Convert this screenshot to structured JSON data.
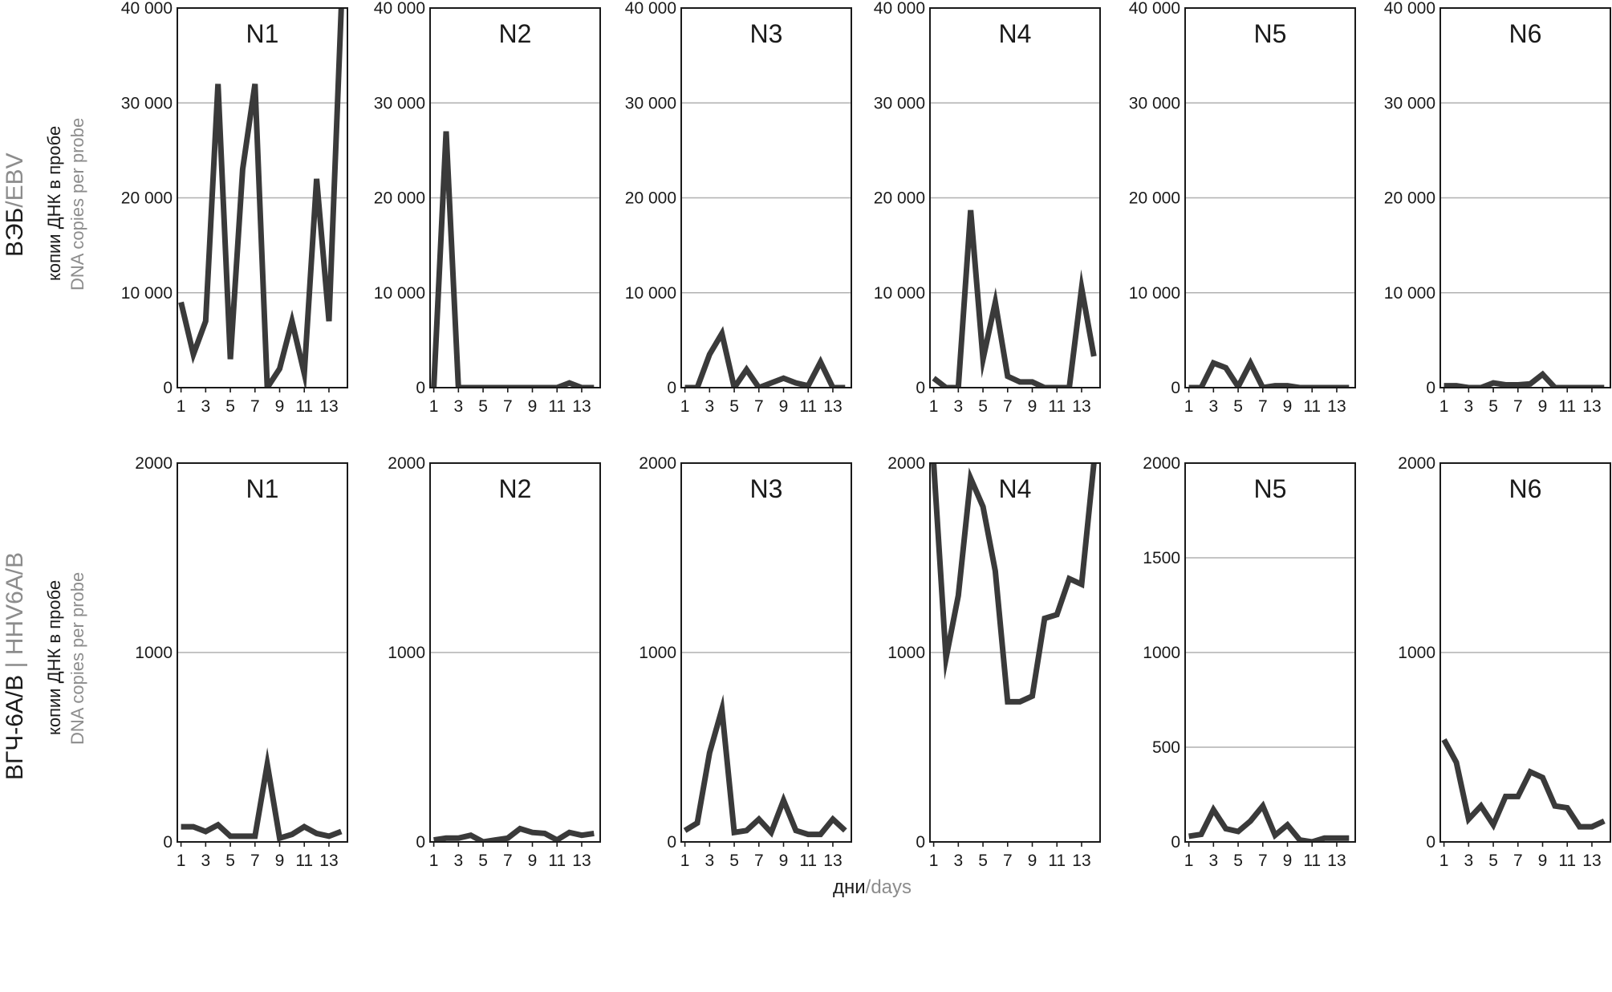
{
  "row_labels": [
    {
      "ru": "ВЭБ",
      "sep": "/",
      "en": "EBV",
      "ylabel_ru": "копии ДНК в пробе",
      "ylabel_en": "DNA copies per probe"
    },
    {
      "ru": "ВГЧ-6А/В",
      "sep": " | ",
      "en": "HHV6A/B",
      "ylabel_ru": "копии ДНК в пробе",
      "ylabel_en": "DNA copies per probe"
    }
  ],
  "x_axis_label": {
    "ru": "дни",
    "sep": "/",
    "en": "days"
  },
  "colors": {
    "line": "#3a3a3a",
    "grid": "#b0b0b0",
    "frame": "#1a1a1a",
    "secondary_text": "#8c8c8c"
  },
  "chart_data": [
    {
      "type": "line",
      "panel_row": 1,
      "title": "N1",
      "xlabel": "",
      "ylabel": "",
      "ylim": [
        0,
        40000
      ],
      "yticks": [
        0,
        10000,
        20000,
        30000,
        40000
      ],
      "ytick_labels": [
        "0",
        "10 000",
        "20 000",
        "30 000",
        "40 000"
      ],
      "xlim": [
        0.7,
        14.5
      ],
      "xticks": [
        1,
        3,
        5,
        7,
        9,
        11,
        13
      ],
      "x": [
        1,
        2,
        3,
        4,
        5,
        6,
        7,
        8,
        9,
        10,
        11,
        12,
        13,
        14
      ],
      "values": [
        9000,
        3500,
        7000,
        32000,
        3000,
        23000,
        32000,
        0,
        2000,
        7000,
        1500,
        22000,
        7000,
        40000
      ]
    },
    {
      "type": "line",
      "panel_row": 1,
      "title": "N2",
      "xlabel": "",
      "ylabel": "",
      "ylim": [
        0,
        40000
      ],
      "yticks": [
        0,
        10000,
        20000,
        30000,
        40000
      ],
      "ytick_labels": [
        "0",
        "10 000",
        "20 000",
        "30 000",
        "40 000"
      ],
      "xlim": [
        0.7,
        14.5
      ],
      "xticks": [
        1,
        3,
        5,
        7,
        9,
        11,
        13
      ],
      "x": [
        1,
        2,
        3,
        4,
        5,
        6,
        7,
        8,
        9,
        10,
        11,
        12,
        13,
        14
      ],
      "values": [
        0,
        27000,
        0,
        0,
        0,
        0,
        0,
        0,
        0,
        0,
        0,
        500,
        0,
        0
      ]
    },
    {
      "type": "line",
      "panel_row": 1,
      "title": "N3",
      "xlabel": "",
      "ylabel": "",
      "ylim": [
        0,
        40000
      ],
      "yticks": [
        0,
        10000,
        20000,
        30000,
        40000
      ],
      "ytick_labels": [
        "0",
        "10 000",
        "20 000",
        "30 000",
        "40 000"
      ],
      "xlim": [
        0.7,
        14.5
      ],
      "xticks": [
        1,
        3,
        5,
        7,
        9,
        11,
        13
      ],
      "x": [
        1,
        2,
        3,
        4,
        5,
        6,
        7,
        8,
        9,
        10,
        11,
        12,
        13,
        14
      ],
      "values": [
        0,
        0,
        3500,
        5700,
        0,
        1900,
        0,
        500,
        1000,
        500,
        200,
        2700,
        0,
        0
      ]
    },
    {
      "type": "line",
      "panel_row": 1,
      "title": "N4",
      "xlabel": "",
      "ylabel": "",
      "ylim": [
        0,
        40000
      ],
      "yticks": [
        0,
        10000,
        20000,
        30000,
        40000
      ],
      "ytick_labels": [
        "0",
        "10 000",
        "20 000",
        "30 000",
        "40 000"
      ],
      "xlim": [
        0.7,
        14.5
      ],
      "xticks": [
        1,
        3,
        5,
        7,
        9,
        11,
        13
      ],
      "x": [
        1,
        2,
        3,
        4,
        5,
        6,
        7,
        8,
        9,
        10,
        11,
        12,
        13,
        14
      ],
      "values": [
        1000,
        0,
        0,
        18700,
        3000,
        9000,
        1200,
        600,
        600,
        0,
        0,
        0,
        10500,
        3300
      ]
    },
    {
      "type": "line",
      "panel_row": 1,
      "title": "N5",
      "xlabel": "",
      "ylabel": "",
      "ylim": [
        0,
        40000
      ],
      "yticks": [
        0,
        10000,
        20000,
        30000,
        40000
      ],
      "ytick_labels": [
        "0",
        "10 000",
        "20 000",
        "30 000",
        "40 000"
      ],
      "xlim": [
        0.7,
        14.5
      ],
      "xticks": [
        1,
        3,
        5,
        7,
        9,
        11,
        13
      ],
      "x": [
        1,
        2,
        3,
        4,
        5,
        6,
        7,
        8,
        9,
        10,
        11,
        12,
        13,
        14
      ],
      "values": [
        0,
        0,
        2600,
        2100,
        100,
        2600,
        0,
        200,
        200,
        0,
        0,
        0,
        0,
        0
      ]
    },
    {
      "type": "line",
      "panel_row": 1,
      "title": "N6",
      "xlabel": "",
      "ylabel": "",
      "ylim": [
        0,
        40000
      ],
      "yticks": [
        0,
        10000,
        20000,
        30000,
        40000
      ],
      "ytick_labels": [
        "0",
        "10 000",
        "20 000",
        "30 000",
        "40 000"
      ],
      "xlim": [
        0.7,
        14.5
      ],
      "xticks": [
        1,
        3,
        5,
        7,
        9,
        11,
        13
      ],
      "x": [
        1,
        2,
        3,
        4,
        5,
        6,
        7,
        8,
        9,
        10,
        11,
        12,
        13,
        14
      ],
      "values": [
        200,
        200,
        0,
        0,
        500,
        300,
        300,
        400,
        1400,
        0,
        0,
        0,
        0,
        0
      ]
    },
    {
      "type": "line",
      "panel_row": 2,
      "title": "N1",
      "xlabel": "",
      "ylabel": "",
      "ylim": [
        0,
        2000
      ],
      "yticks": [
        0,
        1000,
        2000
      ],
      "ytick_labels": [
        "0",
        "1000",
        "2000"
      ],
      "xlim": [
        0.7,
        14.5
      ],
      "xticks": [
        1,
        3,
        5,
        7,
        9,
        11,
        13
      ],
      "x": [
        1,
        2,
        3,
        4,
        5,
        6,
        7,
        8,
        9,
        10,
        11,
        12,
        13,
        14
      ],
      "values": [
        80,
        80,
        55,
        90,
        30,
        30,
        30,
        410,
        20,
        40,
        80,
        45,
        30,
        55
      ]
    },
    {
      "type": "line",
      "panel_row": 2,
      "title": "N2",
      "xlabel": "",
      "ylabel": "",
      "ylim": [
        0,
        2000
      ],
      "yticks": [
        0,
        1000,
        2000
      ],
      "ytick_labels": [
        "0",
        "1000",
        "2000"
      ],
      "xlim": [
        0.7,
        14.5
      ],
      "xticks": [
        1,
        3,
        5,
        7,
        9,
        11,
        13
      ],
      "x": [
        1,
        2,
        3,
        4,
        5,
        6,
        7,
        8,
        9,
        10,
        11,
        12,
        13,
        14
      ],
      "values": [
        10,
        20,
        20,
        35,
        0,
        10,
        20,
        70,
        50,
        45,
        10,
        50,
        35,
        45
      ]
    },
    {
      "type": "line",
      "panel_row": 2,
      "title": "N3",
      "xlabel": "",
      "ylabel": "",
      "ylim": [
        0,
        2000
      ],
      "yticks": [
        0,
        1000,
        2000
      ],
      "ytick_labels": [
        "0",
        "1000",
        "2000"
      ],
      "xlim": [
        0.7,
        14.5
      ],
      "xticks": [
        1,
        3,
        5,
        7,
        9,
        11,
        13
      ],
      "x": [
        1,
        2,
        3,
        4,
        5,
        6,
        7,
        8,
        9,
        10,
        11,
        12,
        13,
        14
      ],
      "values": [
        60,
        100,
        470,
        700,
        50,
        60,
        120,
        50,
        220,
        60,
        40,
        40,
        120,
        60
      ]
    },
    {
      "type": "line",
      "panel_row": 2,
      "title": "N4",
      "xlabel": "",
      "ylabel": "",
      "ylim": [
        0,
        2000
      ],
      "yticks": [
        0,
        1000,
        2000
      ],
      "ytick_labels": [
        "0",
        "1000",
        "2000"
      ],
      "xlim": [
        0.7,
        14.5
      ],
      "xticks": [
        1,
        3,
        5,
        7,
        9,
        11,
        13
      ],
      "x": [
        1,
        2,
        3,
        4,
        5,
        6,
        7,
        8,
        9,
        10,
        11,
        12,
        13,
        14
      ],
      "values": [
        2000,
        970,
        1300,
        1920,
        1770,
        1430,
        740,
        740,
        770,
        1180,
        1200,
        1390,
        1360,
        2000
      ]
    },
    {
      "type": "line",
      "panel_row": 2,
      "title": "N5",
      "xlabel": "",
      "ylabel": "",
      "ylim": [
        0,
        2000
      ],
      "yticks": [
        0,
        500,
        1000,
        1500,
        2000
      ],
      "ytick_labels": [
        "0",
        "500",
        "1000",
        "1500",
        "2000"
      ],
      "xlim": [
        0.7,
        14.5
      ],
      "xticks": [
        1,
        3,
        5,
        7,
        9,
        11,
        13
      ],
      "x": [
        1,
        2,
        3,
        4,
        5,
        6,
        7,
        8,
        9,
        10,
        11,
        12,
        13,
        14
      ],
      "values": [
        30,
        40,
        170,
        70,
        55,
        110,
        190,
        35,
        90,
        10,
        0,
        20,
        20,
        20
      ]
    },
    {
      "type": "line",
      "panel_row": 2,
      "title": "N6",
      "xlabel": "",
      "ylabel": "",
      "ylim": [
        0,
        2000
      ],
      "yticks": [
        0,
        1000,
        2000
      ],
      "ytick_labels": [
        "0",
        "1000",
        "2000"
      ],
      "xlim": [
        0.7,
        14.5
      ],
      "xticks": [
        1,
        3,
        5,
        7,
        9,
        11,
        13
      ],
      "x": [
        1,
        2,
        3,
        4,
        5,
        6,
        7,
        8,
        9,
        10,
        11,
        12,
        13,
        14
      ],
      "values": [
        540,
        420,
        120,
        190,
        90,
        240,
        240,
        370,
        340,
        190,
        180,
        80,
        80,
        110
      ]
    }
  ]
}
